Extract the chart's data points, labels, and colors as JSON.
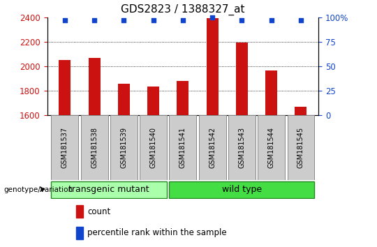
{
  "title": "GDS2823 / 1388327_at",
  "samples": [
    "GSM181537",
    "GSM181538",
    "GSM181539",
    "GSM181540",
    "GSM181541",
    "GSM181542",
    "GSM181543",
    "GSM181544",
    "GSM181545"
  ],
  "counts": [
    2050,
    2065,
    1855,
    1830,
    1880,
    2395,
    2195,
    1965,
    1665
  ],
  "percentile_ranks": [
    97,
    97,
    97,
    97,
    97,
    100,
    97,
    97,
    97
  ],
  "ylim_left": [
    1600,
    2400
  ],
  "ylim_right": [
    0,
    100
  ],
  "yticks_left": [
    1600,
    1800,
    2000,
    2200,
    2400
  ],
  "yticks_right": [
    0,
    25,
    50,
    75,
    100
  ],
  "bar_color": "#cc1111",
  "dot_color": "#1144cc",
  "grid_color": "#000000",
  "title_fontsize": 11,
  "groups": [
    {
      "label": "transgenic mutant",
      "start": 0,
      "end": 3,
      "color": "#aaffaa"
    },
    {
      "label": "wild type",
      "start": 4,
      "end": 8,
      "color": "#44dd44"
    }
  ],
  "genotype_label": "genotype/variation",
  "legend_count_label": "count",
  "legend_percentile_label": "percentile rank within the sample",
  "tick_color_left": "#cc1111",
  "tick_color_right": "#1144cc",
  "bar_width": 0.4,
  "sample_box_color": "#cccccc",
  "sample_box_edge": "#888888"
}
